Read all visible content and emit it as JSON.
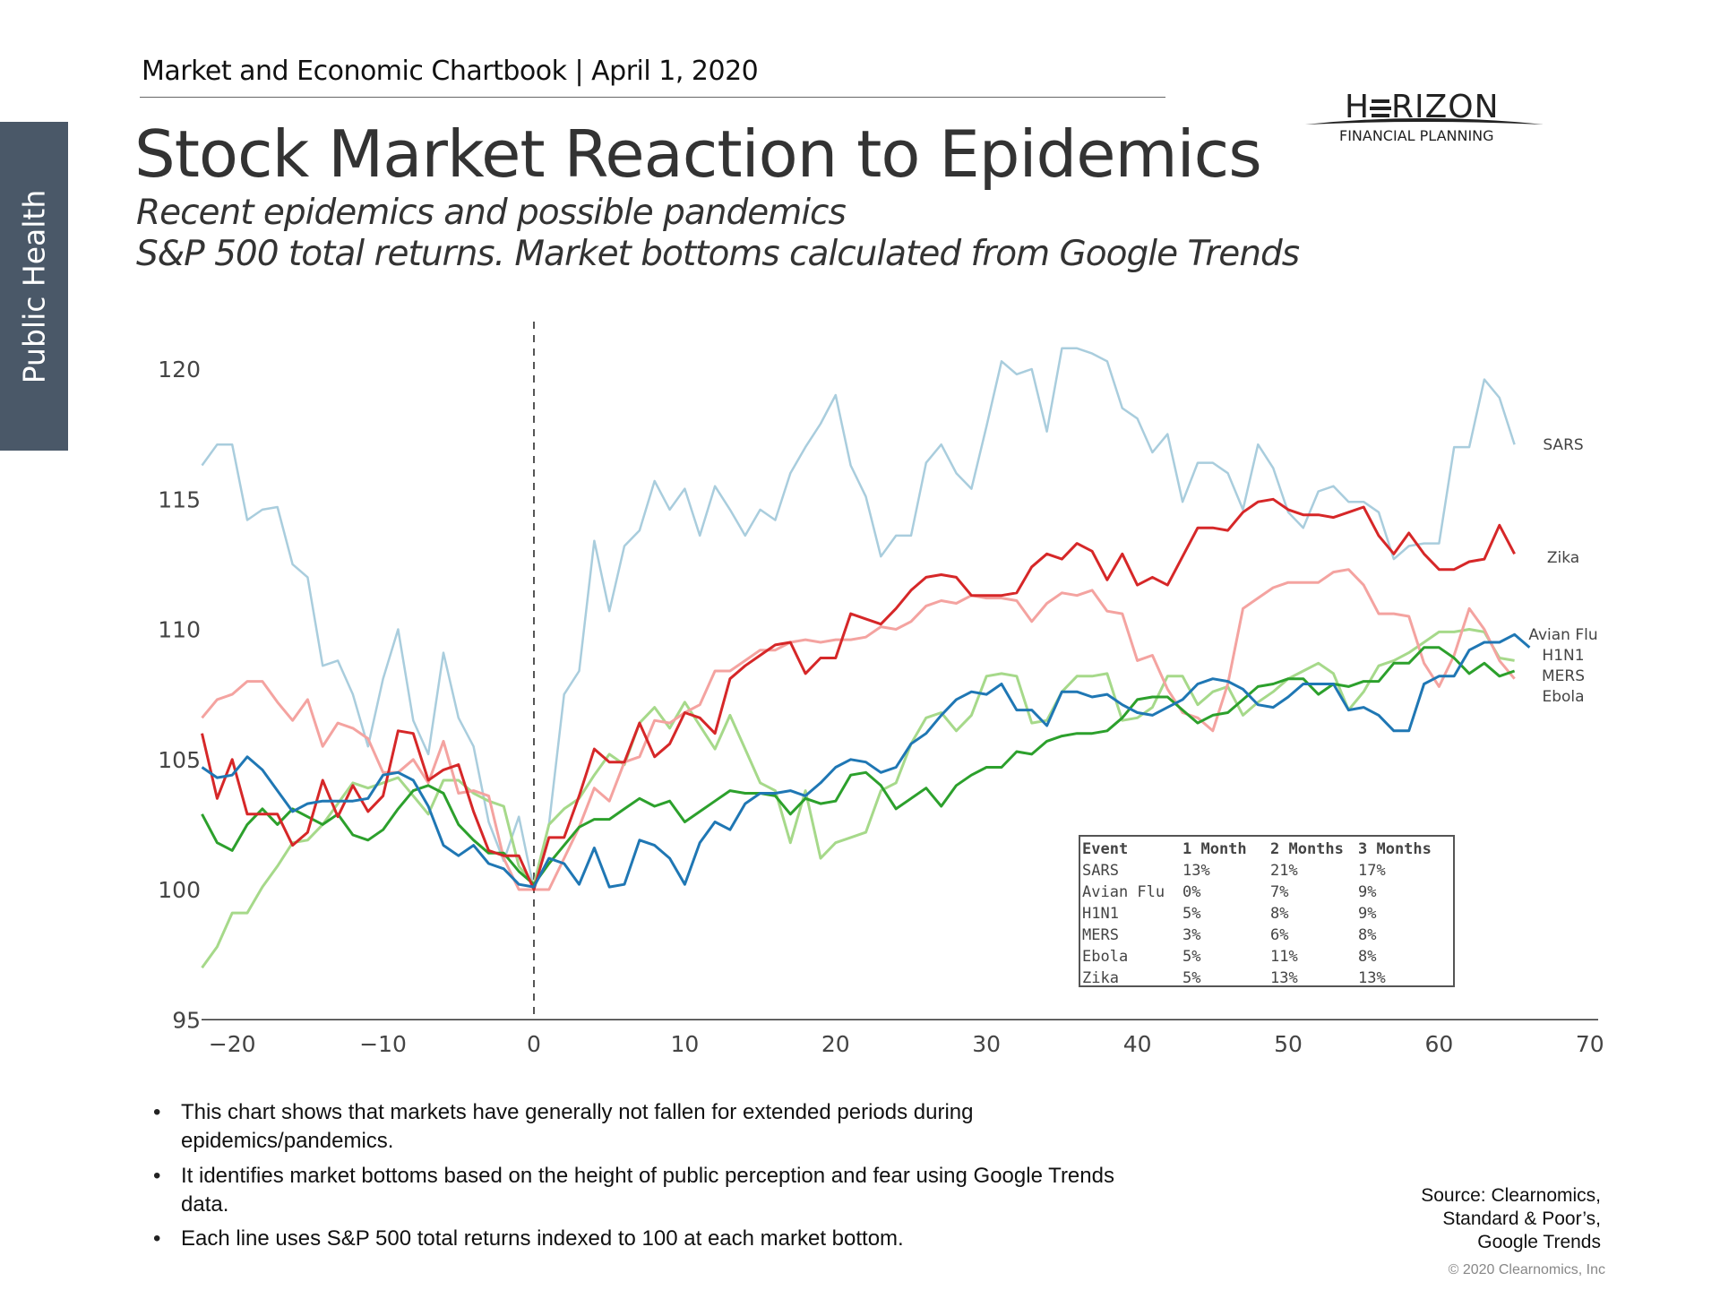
{
  "header": {
    "text": "Market and Economic Chartbook | April 1, 2020"
  },
  "title": "Stock Market Reaction to Epidemics",
  "subtitles": [
    "Recent epidemics and possible pandemics",
    "S&P 500 total returns. Market bottoms calculated from Google Trends"
  ],
  "sidebar": {
    "label": "Public Health"
  },
  "logo": {
    "name": "HORIZON",
    "tagline": "FINANCIAL PLANNING"
  },
  "chart_data": {
    "type": "line",
    "title": "",
    "xlabel": "",
    "ylabel": "",
    "xlim": [
      -22,
      70
    ],
    "ylim": [
      95,
      121.5
    ],
    "xticks": [
      -20,
      -10,
      0,
      10,
      20,
      30,
      40,
      50,
      60,
      70
    ],
    "yticks": [
      95,
      100,
      105,
      110,
      115,
      120
    ],
    "grid": false,
    "vline_x": 0,
    "x_start": -22,
    "series": [
      {
        "name": "SARS",
        "color": "#a9cddd",
        "values": [
          116.3,
          117.1,
          117.1,
          114.2,
          114.6,
          114.7,
          112.5,
          112,
          108.6,
          108.8,
          107.5,
          105.5,
          108.1,
          110,
          106.5,
          105.2,
          109.1,
          106.6,
          105.5,
          102.6,
          101.1,
          102.8,
          100,
          102.5,
          107.5,
          108.4,
          113.4,
          110.7,
          113.2,
          113.8,
          115.7,
          114.6,
          115.4,
          113.6,
          115.5,
          114.6,
          113.6,
          114.6,
          114.2,
          116,
          117,
          117.9,
          119,
          116.3,
          115.1,
          112.8,
          113.6,
          113.6,
          116.4,
          117.1,
          116,
          115.4,
          117.8,
          120.3,
          119.8,
          120,
          117.6,
          120.8,
          120.8,
          120.6,
          120.3,
          118.5,
          118.1,
          116.8,
          117.5,
          114.9,
          116.4,
          116.4,
          116,
          114.6,
          117.1,
          116.2,
          114.5,
          113.9,
          115.3,
          115.5,
          114.9,
          114.9,
          114.5,
          112.7,
          113.2,
          113.3,
          113.3,
          117,
          117,
          119.6,
          118.9,
          117.1
        ]
      },
      {
        "name": "Zika",
        "color": "#d62728",
        "values": [
          106,
          103.5,
          105,
          102.9,
          102.9,
          102.9,
          101.7,
          102.2,
          104.2,
          102.8,
          104,
          103,
          103.6,
          106.1,
          106,
          104.2,
          104.6,
          104.8,
          103,
          101.5,
          101.3,
          101.3,
          100,
          102,
          102,
          103.6,
          105.4,
          104.9,
          104.9,
          106.4,
          105.1,
          105.6,
          106.8,
          106.6,
          106,
          108.1,
          108.6,
          109,
          109.4,
          109.5,
          108.3,
          108.9,
          108.9,
          110.6,
          110.4,
          110.2,
          110.8,
          111.5,
          112,
          112.1,
          112,
          111.3,
          111.3,
          111.3,
          111.4,
          112.4,
          112.9,
          112.7,
          113.3,
          113,
          111.9,
          112.9,
          111.7,
          112,
          111.7,
          112.8,
          113.9,
          113.9,
          113.8,
          114.5,
          114.9,
          115,
          114.6,
          114.4,
          114.4,
          114.3,
          114.5,
          114.7,
          113.6,
          112.9,
          113.7,
          112.9,
          112.3,
          112.3,
          112.6,
          112.7,
          114,
          112.9
        ]
      },
      {
        "name": "Avian Flu",
        "color": "#1f77b4",
        "values": [
          104.7,
          104.3,
          104.4,
          105.1,
          104.6,
          103.8,
          103,
          103.3,
          103.4,
          103.4,
          103.4,
          103.5,
          104.4,
          104.5,
          104.2,
          103.2,
          101.7,
          101.3,
          101.7,
          101,
          100.8,
          100.2,
          100.1,
          101.2,
          101,
          100.2,
          101.6,
          100.1,
          100.2,
          101.9,
          101.7,
          101.2,
          100.2,
          101.8,
          102.6,
          102.3,
          103.3,
          103.7,
          103.7,
          103.8,
          103.6,
          104.1,
          104.7,
          105,
          104.9,
          104.5,
          104.7,
          105.6,
          106,
          106.7,
          107.3,
          107.6,
          107.5,
          107.9,
          106.9,
          106.9,
          106.3,
          107.6,
          107.6,
          107.4,
          107.5,
          107.1,
          106.8,
          106.7,
          107,
          107.3,
          107.9,
          108.1,
          108,
          107.7,
          107.1,
          107,
          107.4,
          107.9,
          107.9,
          107.9,
          106.9,
          107,
          106.7,
          106.1,
          106.1,
          107.9,
          108.2,
          108.2,
          109.2,
          109.5,
          109.5,
          109.8,
          109.3
        ]
      },
      {
        "name": "H1N1",
        "color": "#a6d98a",
        "values": [
          97,
          97.8,
          99.1,
          99.1,
          100.1,
          100.9,
          101.8,
          101.9,
          102.5,
          103.3,
          104.1,
          103.9,
          104.1,
          104.3,
          103.6,
          102.9,
          104.2,
          104.2,
          103.7,
          103.4,
          103.2,
          100.9,
          100.2,
          102.5,
          103.1,
          103.5,
          104.4,
          105.2,
          104.8,
          106.4,
          107,
          106.2,
          107.2,
          106.3,
          105.4,
          106.7,
          105.4,
          104.1,
          103.8,
          101.8,
          103.8,
          101.2,
          101.8,
          102,
          102.2,
          103.8,
          104.1,
          105.6,
          106.6,
          106.8,
          106.1,
          106.7,
          108.2,
          108.3,
          108.2,
          106.4,
          106.5,
          107.6,
          108.2,
          108.2,
          108.3,
          106.5,
          106.6,
          107,
          108.2,
          108.2,
          107.1,
          107.6,
          107.8,
          106.7,
          107.2,
          107.6,
          108.1,
          108.4,
          108.7,
          108.3,
          106.9,
          107.6,
          108.6,
          108.8,
          109.1,
          109.5,
          109.9,
          109.9,
          110,
          109.9,
          108.9,
          108.8
        ]
      },
      {
        "name": "MERS",
        "color": "#2ca02c",
        "values": [
          102.9,
          101.8,
          101.5,
          102.5,
          103.1,
          102.5,
          103.1,
          102.8,
          102.5,
          102.9,
          102.1,
          101.9,
          102.3,
          103.1,
          103.8,
          104,
          103.7,
          102.5,
          101.9,
          101.4,
          101.4,
          100.7,
          100.2,
          101,
          101.7,
          102.4,
          102.7,
          102.7,
          103.1,
          103.5,
          103.2,
          103.4,
          102.6,
          103,
          103.4,
          103.8,
          103.7,
          103.7,
          103.6,
          102.9,
          103.5,
          103.3,
          103.4,
          104.4,
          104.5,
          104,
          103.1,
          103.5,
          103.9,
          103.2,
          104,
          104.4,
          104.7,
          104.7,
          105.3,
          105.2,
          105.7,
          105.9,
          106,
          106,
          106.1,
          106.6,
          107.3,
          107.4,
          107.4,
          106.9,
          106.4,
          106.7,
          106.8,
          107.3,
          107.8,
          107.9,
          108.1,
          108.1,
          107.5,
          107.9,
          107.8,
          108,
          108,
          108.7,
          108.7,
          109.3,
          109.3,
          108.9,
          108.3,
          108.7,
          108.2,
          108.4
        ]
      },
      {
        "name": "Ebola",
        "color": "#f4a3a0",
        "values": [
          106.6,
          107.3,
          107.5,
          108,
          108,
          107.2,
          106.5,
          107.3,
          105.5,
          106.4,
          106.2,
          105.8,
          104.5,
          104.5,
          105,
          104.1,
          105.7,
          103.7,
          103.8,
          103.6,
          101.2,
          100,
          100,
          100,
          101.2,
          102.4,
          103.9,
          103.4,
          104.9,
          105.1,
          106.5,
          106.4,
          106.8,
          107.1,
          108.4,
          108.4,
          108.8,
          109.2,
          109.2,
          109.5,
          109.6,
          109.5,
          109.6,
          109.6,
          109.7,
          110.1,
          110,
          110.3,
          110.9,
          111.1,
          111,
          111.3,
          111.2,
          111.2,
          111.1,
          110.3,
          111,
          111.4,
          111.3,
          111.5,
          110.7,
          110.6,
          108.8,
          109,
          107.7,
          106.8,
          106.6,
          106.1,
          107.9,
          110.8,
          111.2,
          111.6,
          111.8,
          111.8,
          111.8,
          112.2,
          112.3,
          111.7,
          110.6,
          110.6,
          110.5,
          108.7,
          107.8,
          109,
          110.8,
          110,
          108.8,
          108.1
        ]
      }
    ],
    "table": {
      "headers": [
        "Event",
        "1 Month",
        "2 Months",
        "3 Months"
      ],
      "rows": [
        [
          "SARS",
          "13%",
          "21%",
          "17%"
        ],
        [
          "Avian Flu",
          "0%",
          "7%",
          "9%"
        ],
        [
          "H1N1",
          "5%",
          "8%",
          "9%"
        ],
        [
          "MERS",
          "3%",
          "6%",
          "8%"
        ],
        [
          "Ebola",
          "5%",
          "11%",
          "8%"
        ],
        [
          "Zika",
          "5%",
          "13%",
          "13%"
        ]
      ]
    }
  },
  "bullets": [
    [
      "This chart shows that markets have generally not fallen for extended periods during",
      "epidemics/pandemics."
    ],
    [
      "It identifies market bottoms based on the height of public perception and fear using Google Trends",
      "data."
    ],
    [
      "Each line uses S&P 500 total returns indexed to 100 at each market bottom."
    ]
  ],
  "bullet_char": "•",
  "source": [
    "Source: Clearnomics,",
    "Standard & Poor’s,",
    "Google Trends"
  ],
  "copyright": "© 2020 Clearnomics, Inc"
}
